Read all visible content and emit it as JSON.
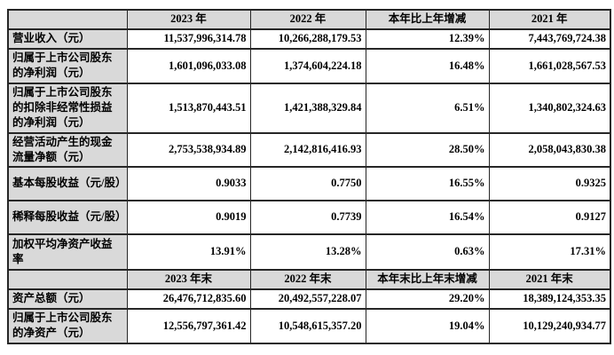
{
  "colors": {
    "cell_gray": "#d9d9d9",
    "border": "#262626",
    "text": "#000000",
    "background": "#ffffff"
  },
  "table": {
    "annual": {
      "headers": [
        "2023 年",
        "2022 年",
        "本年比上年增减",
        "2021 年"
      ],
      "rows": [
        {
          "label": "营业收入（元）",
          "y2023": "11,537,996,314.78",
          "y2022": "10,266,288,179.53",
          "change": "12.39%",
          "y2021": "7,443,769,724.38"
        },
        {
          "label": "归属于上市公司股东的净利润（元）",
          "y2023": "1,601,096,033.08",
          "y2022": "1,374,604,224.18",
          "change": "16.48%",
          "y2021": "1,661,028,567.53"
        },
        {
          "label": "归属于上市公司股东的扣除非经常性损益的净利润（元）",
          "y2023": "1,513,870,443.51",
          "y2022": "1,421,388,329.84",
          "change": "6.51%",
          "y2021": "1,340,802,324.63"
        },
        {
          "label": "经营活动产生的现金流量净额（元）",
          "y2023": "2,753,538,934.89",
          "y2022": "2,142,816,416.93",
          "change": "28.50%",
          "y2021": "2,058,043,830.38"
        },
        {
          "label": "基本每股收益（元/股）",
          "y2023": "0.9033",
          "y2022": "0.7750",
          "change": "16.55%",
          "y2021": "0.9325"
        },
        {
          "label": "稀释每股收益（元/股）",
          "y2023": "0.9019",
          "y2022": "0.7739",
          "change": "16.54%",
          "y2021": "0.9127"
        },
        {
          "label": "加权平均净资产收益率",
          "y2023": "13.91%",
          "y2022": "13.28%",
          "change": "0.63%",
          "y2021": "17.31%"
        }
      ]
    },
    "year_end": {
      "headers": [
        "2023 年末",
        "2022 年末",
        "本年末比上年末增减",
        "2021 年末"
      ],
      "rows": [
        {
          "label": "资产总额（元）",
          "y2023": "26,476,712,835.60",
          "y2022": "20,492,557,228.07",
          "change": "29.20%",
          "y2021": "18,389,124,353.35"
        },
        {
          "label": "归属于上市公司股东的净资产（元）",
          "y2023": "12,556,797,361.42",
          "y2022": "10,548,615,357.20",
          "change": "19.04%",
          "y2021": "10,129,240,934.77"
        }
      ]
    }
  }
}
